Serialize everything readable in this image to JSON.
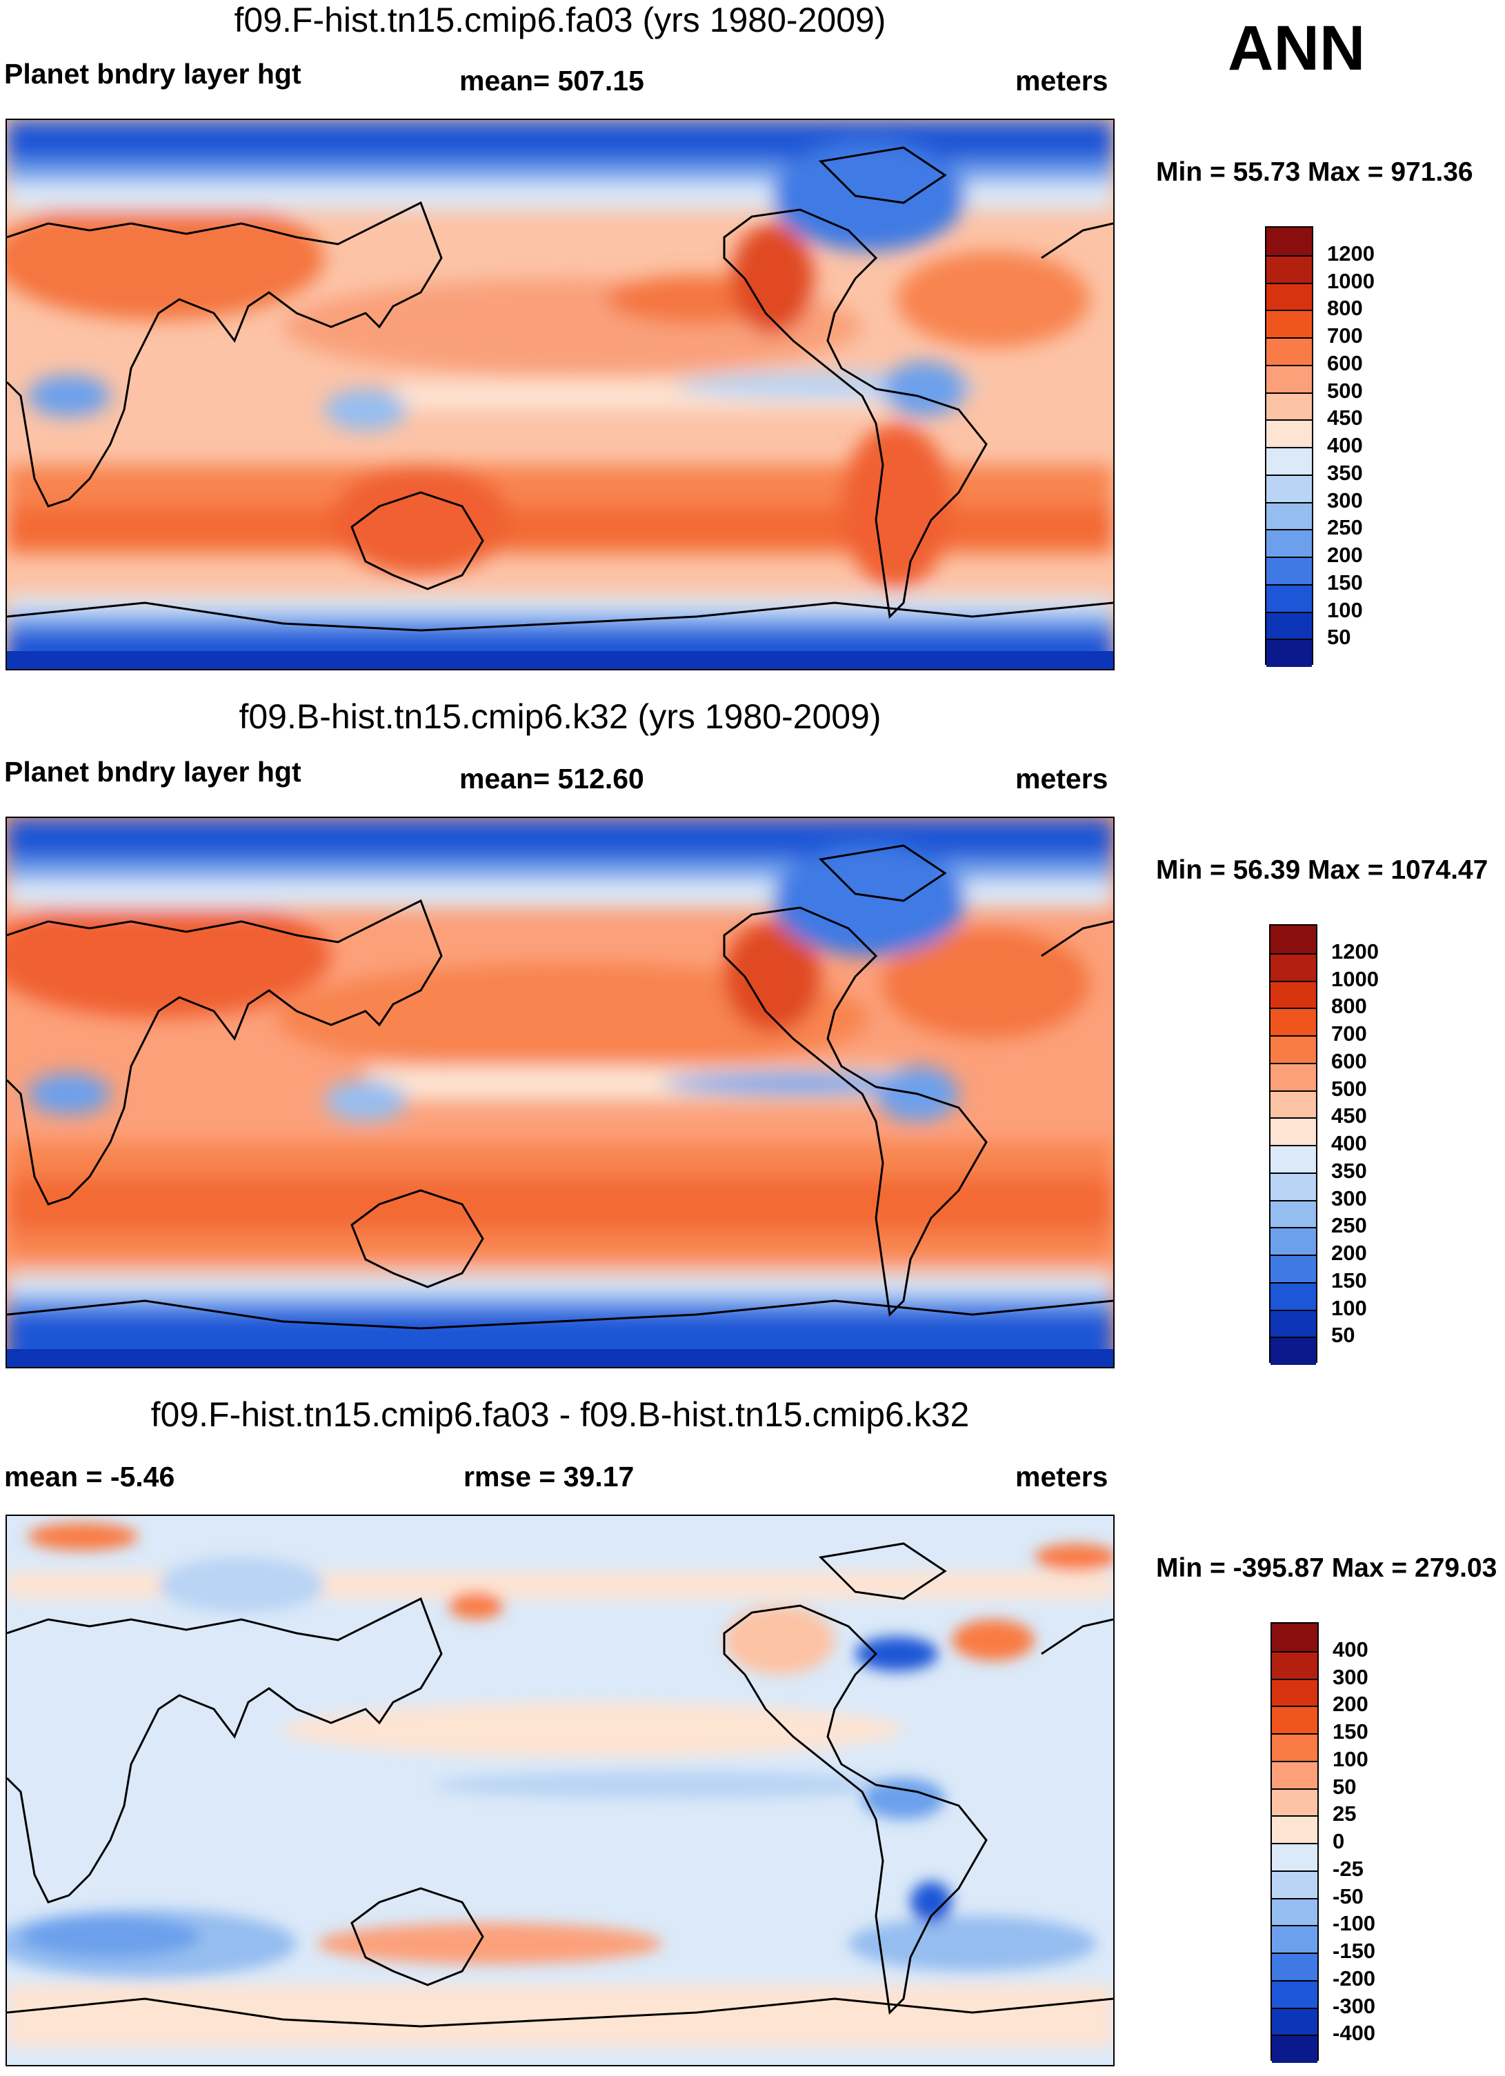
{
  "season_label": "ANN",
  "units_label": "meters",
  "panels": [
    {
      "title": "f09.F-hist.tn15.cmip6.fa03 (yrs 1980-2009)",
      "left_label": "Planet bndry layer hgt",
      "center_label": "mean= 507.15",
      "right_label": "meters",
      "minmax": "Min =  55.73 Max = 971.36",
      "field": "Planet bndry layer hgt",
      "mean": 507.15,
      "min": 55.73,
      "max": 971.36
    },
    {
      "title": "f09.B-hist.tn15.cmip6.k32 (yrs 1980-2009)",
      "left_label": "Planet bndry layer hgt",
      "center_label": "mean= 512.60",
      "right_label": "meters",
      "minmax": "Min =  56.39 Max = 1074.47",
      "field": "Planet bndry layer hgt",
      "mean": 512.6,
      "min": 56.39,
      "max": 1074.47
    },
    {
      "title": "f09.F-hist.tn15.cmip6.fa03 - f09.B-hist.tn15.cmip6.k32",
      "left_label": "mean =  -5.46",
      "center_label": "rmse =  39.17",
      "right_label": "meters",
      "minmax": "Min = -395.87 Max = 279.03",
      "mean": -5.46,
      "rmse": 39.17,
      "min": -395.87,
      "max": 279.03
    }
  ],
  "colorbars": [
    {
      "labels": [
        "1200",
        "1000",
        "800",
        "700",
        "600",
        "500",
        "450",
        "400",
        "350",
        "300",
        "250",
        "200",
        "150",
        "100",
        "50"
      ],
      "colors": [
        "#8a0e0e",
        "#b3200f",
        "#d8330f",
        "#f0551e",
        "#f97b45",
        "#fca07a",
        "#fdc3a5",
        "#fde4d3",
        "#dbe9f8",
        "#b9d4f4",
        "#95bdf0",
        "#6ca0ec",
        "#3f7ae4",
        "#1d56d6",
        "#0c35b8",
        "#0a1a8c"
      ]
    },
    {
      "labels": [
        "1200",
        "1000",
        "800",
        "700",
        "600",
        "500",
        "450",
        "400",
        "350",
        "300",
        "250",
        "200",
        "150",
        "100",
        "50"
      ],
      "colors": [
        "#8a0e0e",
        "#b3200f",
        "#d8330f",
        "#f0551e",
        "#f97b45",
        "#fca07a",
        "#fdc3a5",
        "#fde4d3",
        "#dbe9f8",
        "#b9d4f4",
        "#95bdf0",
        "#6ca0ec",
        "#3f7ae4",
        "#1d56d6",
        "#0c35b8",
        "#0a1a8c"
      ]
    },
    {
      "labels": [
        "400",
        "300",
        "200",
        "150",
        "100",
        "50",
        "25",
        "0",
        "-25",
        "-50",
        "-100",
        "-150",
        "-200",
        "-300",
        "-400"
      ],
      "colors": [
        "#8a0e0e",
        "#b3200f",
        "#d8330f",
        "#f0551e",
        "#f97b45",
        "#fca07a",
        "#fdc3a5",
        "#fde4d3",
        "#dbe9f8",
        "#b9d4f4",
        "#95bdf0",
        "#6ca0ec",
        "#3f7ae4",
        "#1d56d6",
        "#0c35b8",
        "#0a1a8c"
      ]
    }
  ]
}
